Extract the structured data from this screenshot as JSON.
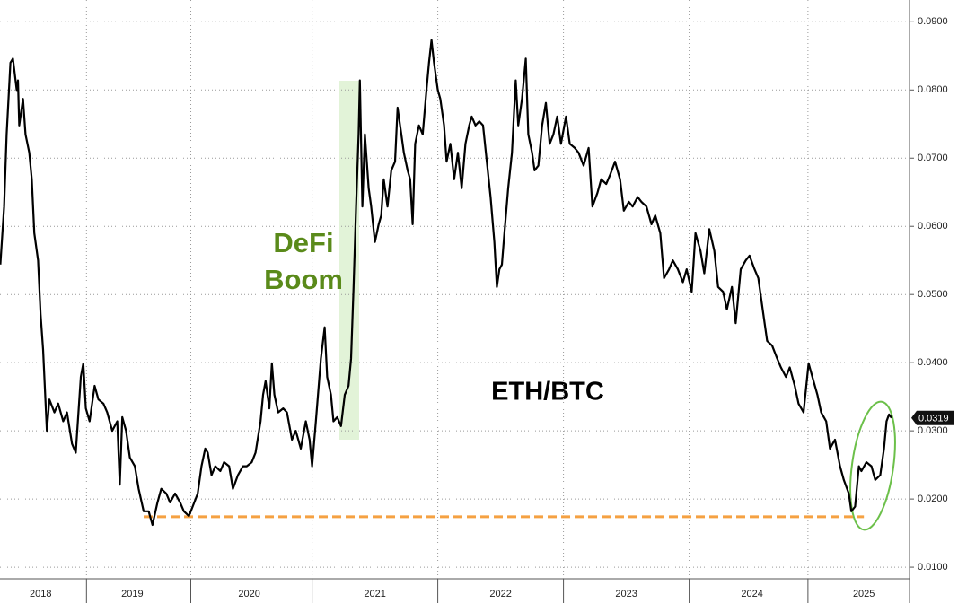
{
  "chart_data": {
    "type": "line",
    "annotation": {
      "lines": [
        "DeFi",
        "Boom"
      ],
      "color": "#5a8a1a"
    },
    "x": [
      2018.36,
      2018.39,
      2018.41,
      2018.44,
      2018.46,
      2018.49,
      2018.5,
      2018.51,
      2018.54,
      2018.56,
      2018.59,
      2018.61,
      2018.63,
      2018.66,
      2018.68,
      2018.7,
      2018.73,
      2018.75,
      2018.79,
      2018.82,
      2018.86,
      2018.89,
      2018.93,
      2018.96,
      2019.0,
      2019.02,
      2019.04,
      2019.07,
      2019.11,
      2019.14,
      2019.18,
      2019.21,
      2019.25,
      2019.29,
      2019.31,
      2019.33,
      2019.36,
      2019.39,
      2019.43,
      2019.46,
      2019.5,
      2019.54,
      2019.57,
      2019.61,
      2019.64,
      2019.68,
      2019.71,
      2019.75,
      2019.79,
      2019.82,
      2019.86,
      2019.89,
      2019.93,
      2019.96,
      2019.99,
      2020.01,
      2020.04,
      2020.07,
      2020.11,
      2020.14,
      2020.18,
      2020.21,
      2020.25,
      2020.29,
      2020.32,
      2020.36,
      2020.39,
      2020.43,
      2020.45,
      2020.47,
      2020.5,
      2020.52,
      2020.54,
      2020.57,
      2020.61,
      2020.64,
      2020.68,
      2020.71,
      2020.75,
      2020.79,
      2020.82,
      2020.84,
      2020.87,
      2020.91,
      2020.94,
      2020.96,
      2020.99,
      2021.01,
      2021.04,
      2021.07,
      2021.1,
      2021.13,
      2021.15,
      2021.17,
      2021.19,
      2021.21,
      2021.22,
      2021.24,
      2021.26,
      2021.29,
      2021.31,
      2021.34,
      2021.37,
      2021.39,
      2021.41,
      2021.44,
      2021.47,
      2021.5,
      2021.52,
      2021.55,
      2021.57,
      2021.6,
      2021.62,
      2021.64,
      2021.66,
      2021.69,
      2021.72,
      2021.75,
      2021.77,
      2021.79,
      2021.81,
      2021.84,
      2021.86,
      2021.89,
      2021.91,
      2021.94,
      2021.97,
      2022.0,
      2022.03,
      2022.06,
      2022.09,
      2022.11,
      2022.14,
      2022.17,
      2022.2,
      2022.23,
      2022.26,
      2022.29,
      2022.31,
      2022.33,
      2022.35,
      2022.37,
      2022.4,
      2022.43,
      2022.46,
      2022.48,
      2022.51,
      2022.54,
      2022.56,
      2022.59,
      2022.61,
      2022.64,
      2022.67,
      2022.7,
      2022.73,
      2022.76,
      2022.79,
      2022.82,
      2022.86,
      2022.89,
      2022.93,
      2022.96,
      2023.0,
      2023.04,
      2023.07,
      2023.11,
      2023.14,
      2023.18,
      2023.21,
      2023.25,
      2023.29,
      2023.32,
      2023.36,
      2023.39,
      2023.43,
      2023.46,
      2023.5,
      2023.54,
      2023.57,
      2023.61,
      2023.64,
      2023.68,
      2023.71,
      2023.75,
      2023.79,
      2023.82,
      2023.86,
      2023.89,
      2023.93,
      2023.96,
      2024.0,
      2024.04,
      2024.07,
      2024.11,
      2024.14,
      2024.18,
      2024.21,
      2024.25,
      2024.29,
      2024.32,
      2024.36,
      2024.39,
      2024.43,
      2024.46,
      2024.5,
      2024.54,
      2024.57,
      2024.61,
      2024.64,
      2024.68,
      2024.71,
      2024.75,
      2024.79,
      2024.82,
      2024.86,
      2024.89,
      2024.93,
      2024.96,
      2025.0,
      2025.04,
      2025.07,
      2025.11,
      2025.13,
      2025.16,
      2025.19,
      2025.21,
      2025.25,
      2025.29,
      2025.32,
      2025.36,
      2025.39,
      2025.41,
      2025.43,
      2025.45
    ],
    "series": [
      {
        "name": "ETH/BTC",
        "color": "#000000",
        "values": [
          0.0544,
          0.0629,
          0.0735,
          0.084,
          0.0846,
          0.08,
          0.0814,
          0.0748,
          0.0787,
          0.0735,
          0.0708,
          0.0669,
          0.059,
          0.055,
          0.0471,
          0.0419,
          0.03,
          0.0346,
          0.0327,
          0.034,
          0.0314,
          0.0327,
          0.0281,
          0.0268,
          0.0379,
          0.0399,
          0.0333,
          0.0314,
          0.0366,
          0.0346,
          0.034,
          0.0327,
          0.03,
          0.0314,
          0.0221,
          0.032,
          0.03,
          0.0261,
          0.0248,
          0.0215,
          0.0182,
          0.0182,
          0.0162,
          0.0195,
          0.0215,
          0.0208,
          0.0195,
          0.0208,
          0.0195,
          0.0182,
          0.0175,
          0.0189,
          0.0208,
          0.0248,
          0.0274,
          0.0268,
          0.0235,
          0.0248,
          0.0241,
          0.0254,
          0.0248,
          0.0215,
          0.0235,
          0.0248,
          0.0248,
          0.0254,
          0.0268,
          0.0314,
          0.0353,
          0.0373,
          0.0333,
          0.0399,
          0.0353,
          0.0327,
          0.0333,
          0.0327,
          0.0287,
          0.03,
          0.0274,
          0.0314,
          0.0287,
          0.0248,
          0.0314,
          0.0406,
          0.0452,
          0.0379,
          0.0353,
          0.0314,
          0.032,
          0.0307,
          0.0353,
          0.0366,
          0.0406,
          0.0511,
          0.0629,
          0.0735,
          0.0814,
          0.0629,
          0.0735,
          0.0656,
          0.0629,
          0.0577,
          0.0603,
          0.0616,
          0.0669,
          0.0629,
          0.0682,
          0.0695,
          0.0774,
          0.0735,
          0.0708,
          0.0682,
          0.0669,
          0.0603,
          0.0721,
          0.0748,
          0.0735,
          0.08,
          0.084,
          0.0873,
          0.084,
          0.08,
          0.0787,
          0.0748,
          0.0695,
          0.0721,
          0.0669,
          0.0708,
          0.0656,
          0.0721,
          0.0748,
          0.0761,
          0.0748,
          0.0754,
          0.0748,
          0.0695,
          0.0643,
          0.0577,
          0.0511,
          0.0537,
          0.0544,
          0.059,
          0.0656,
          0.0708,
          0.0814,
          0.0748,
          0.0787,
          0.0846,
          0.0735,
          0.0708,
          0.0682,
          0.0689,
          0.0748,
          0.0781,
          0.0721,
          0.0735,
          0.0761,
          0.0721,
          0.0761,
          0.0721,
          0.0715,
          0.0708,
          0.0689,
          0.0715,
          0.0629,
          0.0649,
          0.0669,
          0.0662,
          0.0675,
          0.0695,
          0.0669,
          0.0623,
          0.0636,
          0.0629,
          0.0643,
          0.0636,
          0.0629,
          0.0603,
          0.0616,
          0.059,
          0.0524,
          0.0537,
          0.055,
          0.0537,
          0.0518,
          0.0537,
          0.0504,
          0.059,
          0.0564,
          0.0531,
          0.0596,
          0.0564,
          0.0511,
          0.0504,
          0.0478,
          0.0511,
          0.0458,
          0.0537,
          0.055,
          0.0557,
          0.0537,
          0.0524,
          0.0471,
          0.0432,
          0.0425,
          0.0406,
          0.0393,
          0.0379,
          0.0393,
          0.0366,
          0.034,
          0.0327,
          0.0399,
          0.0379,
          0.0353,
          0.0327,
          0.0314,
          0.0274,
          0.0287,
          0.0248,
          0.0228,
          0.0208,
          0.0182,
          0.0189,
          0.0248,
          0.0241,
          0.0254,
          0.0248,
          0.0228,
          0.0235,
          0.0274,
          0.0314,
          0.0324,
          0.0319
        ]
      }
    ],
    "reference_line": {
      "value": 0.0174,
      "x": [
        2019.5,
        2025.23
      ],
      "color": "#f5a142"
    },
    "xlim": [
      2018.357,
      2025.593
    ],
    "xticks": [
      {
        "value": 2018.68,
        "label": "2018"
      },
      {
        "value": 2019.41,
        "label": "2019"
      },
      {
        "value": 2020.34,
        "label": "2020"
      },
      {
        "value": 2021.34,
        "label": "2021"
      },
      {
        "value": 2022.34,
        "label": "2022"
      },
      {
        "value": 2023.34,
        "label": "2023"
      },
      {
        "value": 2024.34,
        "label": "2024"
      },
      {
        "value": 2025.23,
        "label": "2025"
      }
    ],
    "ylim": [
      0.0083,
      0.0932
    ],
    "yticks": [
      {
        "value": 0.01,
        "label": "0.0100"
      },
      {
        "value": 0.02,
        "label": "0.0200"
      },
      {
        "value": 0.03,
        "label": "0.0300"
      },
      {
        "value": 0.04,
        "label": "0.0400"
      },
      {
        "value": 0.05,
        "label": "0.0500"
      },
      {
        "value": 0.06,
        "label": "0.0600"
      },
      {
        "value": 0.07,
        "label": "0.0700"
      },
      {
        "value": 0.08,
        "label": "0.0800"
      },
      {
        "value": 0.09,
        "label": "0.0900"
      }
    ],
    "grid": true
  }
}
